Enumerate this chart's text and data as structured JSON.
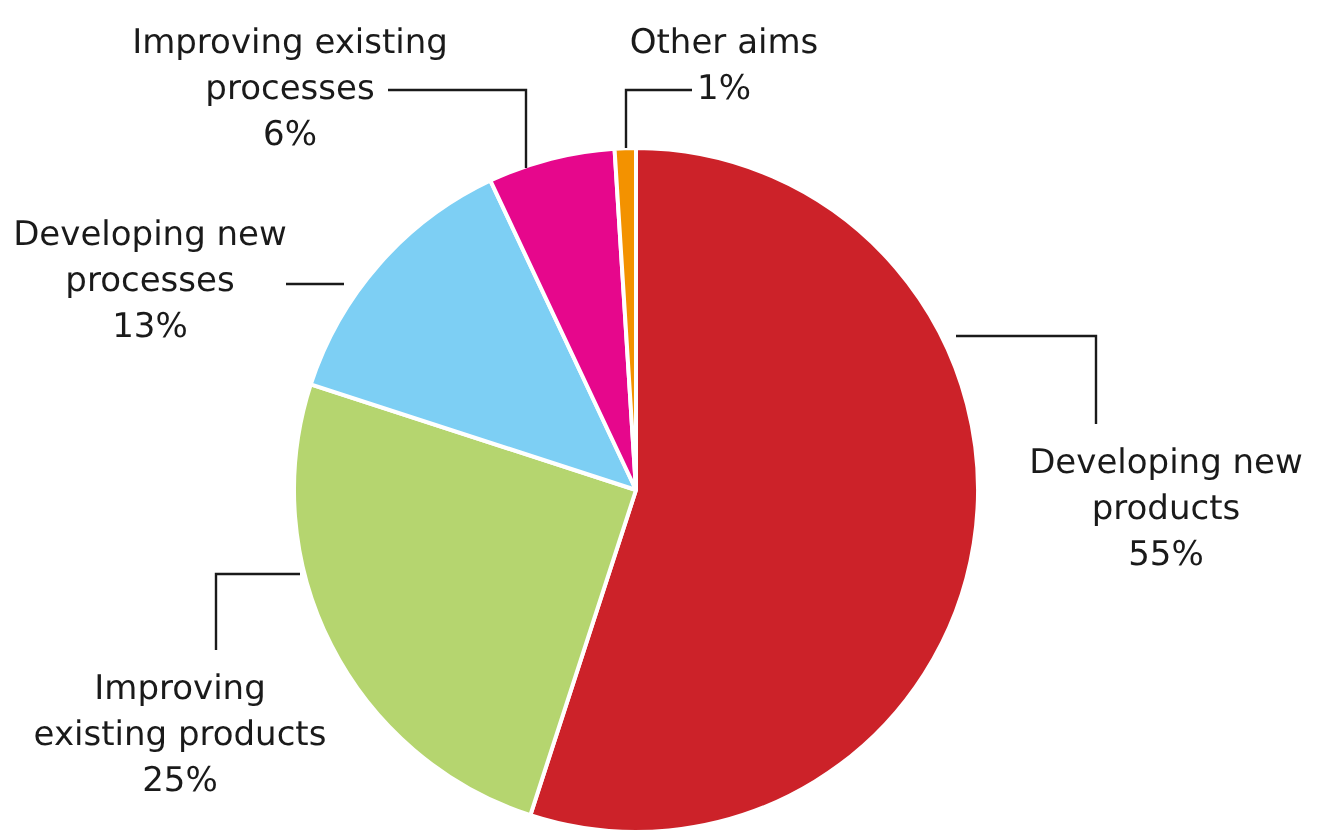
{
  "chart_data": {
    "type": "pie",
    "categories": [
      "Developing new products",
      "Improving existing products",
      "Developing new processes",
      "Improving existing processes",
      "Other aims"
    ],
    "values": [
      55,
      25,
      13,
      6,
      1
    ],
    "value_labels": [
      "55%",
      "25%",
      "13%",
      "6%",
      "1%"
    ],
    "colors": [
      "#cc2229",
      "#b5d56f",
      "#7dcff4",
      "#e6078c",
      "#f39200"
    ],
    "legend": false
  }
}
